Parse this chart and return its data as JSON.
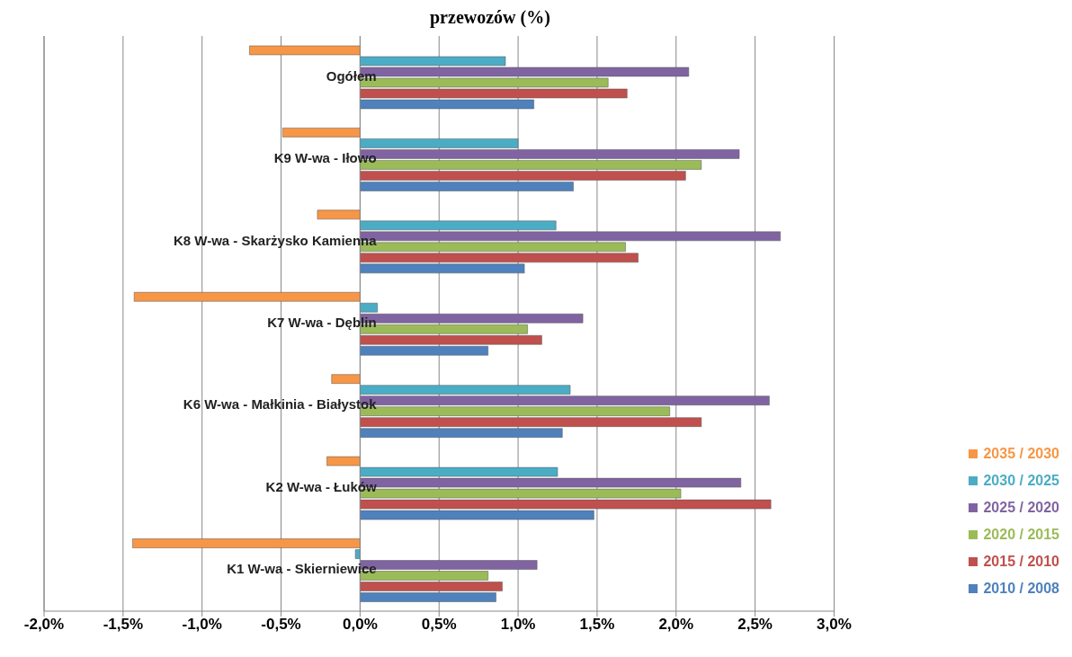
{
  "chart_data": {
    "type": "bar",
    "orientation": "horizontal",
    "title": "przewozów (%)",
    "categories": [
      "Ogółem",
      "K9 W-wa - Iłowo",
      "K8 W-wa - Skarżysko  Kamienna",
      "K7 W-wa - Dęblin",
      "K6 W-wa - Małkinia  - Białystok",
      "K2 W-wa - Łuków",
      "K1 W-wa - Skierniewice"
    ],
    "series": [
      {
        "name": "2035 / 2030",
        "color": "#f79646",
        "values": [
          -0.7,
          -0.49,
          -0.27,
          -1.43,
          -0.18,
          -0.21,
          -1.44
        ]
      },
      {
        "name": "2030 / 2025",
        "color": "#4bacc6",
        "values": [
          0.92,
          1.0,
          1.24,
          0.11,
          1.33,
          1.25,
          -0.03
        ]
      },
      {
        "name": "2025 / 2020",
        "color": "#8064a2",
        "values": [
          2.08,
          2.4,
          2.66,
          1.41,
          2.59,
          2.41,
          1.12
        ]
      },
      {
        "name": "2020 / 2015",
        "color": "#9bbb59",
        "values": [
          1.57,
          2.16,
          1.68,
          1.06,
          1.96,
          2.03,
          0.81
        ]
      },
      {
        "name": "2015 / 2010",
        "color": "#c0504d",
        "values": [
          1.69,
          2.06,
          1.76,
          1.15,
          2.16,
          2.6,
          0.9
        ]
      },
      {
        "name": "2010 / 2008",
        "color": "#4f81bd",
        "values": [
          1.1,
          1.35,
          1.04,
          0.81,
          1.28,
          1.48,
          0.86
        ]
      }
    ],
    "xlim": [
      -2.0,
      3.0
    ],
    "xticks": [
      {
        "value": -2.0,
        "label": "-2,0%"
      },
      {
        "value": -1.5,
        "label": "-1,5%"
      },
      {
        "value": -1.0,
        "label": "-1,0%"
      },
      {
        "value": -0.5,
        "label": "-0,5%"
      },
      {
        "value": 0.0,
        "label": "0,0%"
      },
      {
        "value": 0.5,
        "label": "0,5%"
      },
      {
        "value": 1.0,
        "label": "1,0%"
      },
      {
        "value": 1.5,
        "label": "1,5%"
      },
      {
        "value": 2.0,
        "label": "2,0%"
      },
      {
        "value": 2.5,
        "label": "2,5%"
      },
      {
        "value": 3.0,
        "label": "3,0%"
      }
    ],
    "grid": "x",
    "legend": "bottom right"
  }
}
